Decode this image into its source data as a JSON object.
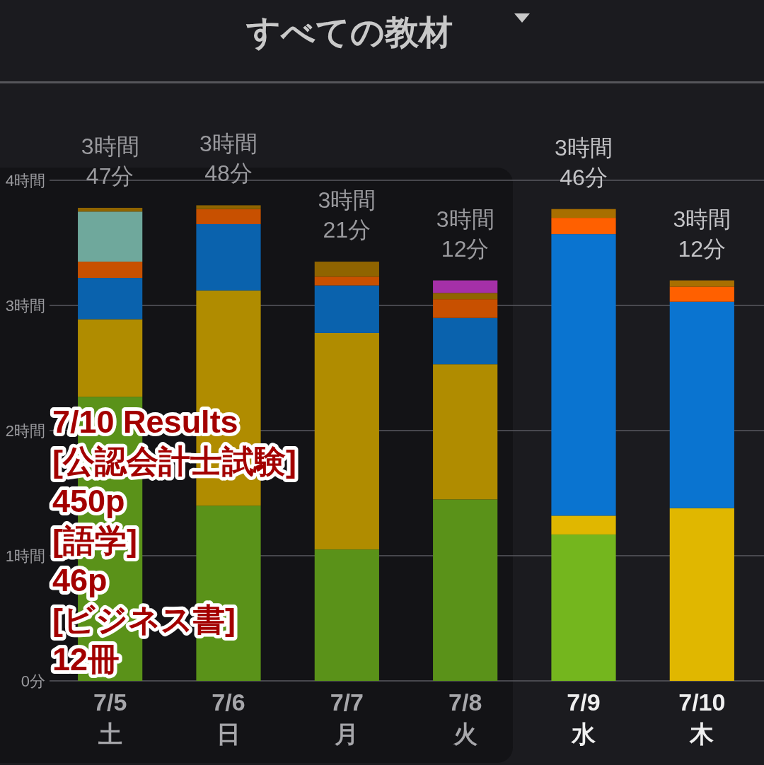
{
  "chart_data": {
    "type": "bar",
    "stacked": true,
    "title": "すべての教材",
    "categories": [
      "7/5\n土",
      "7/6\n日",
      "7/7\n月",
      "7/8\n火",
      "7/9\n水",
      "7/10\n木"
    ],
    "series": [
      {
        "colors": [
          "#5a9219",
          "#5a9219",
          "#5a9219",
          "#5a9219",
          "#74b61e",
          null
        ],
        "values": [
          2.27,
          1.4,
          1.05,
          1.45,
          1.17,
          null
        ]
      },
      {
        "colors": [
          "#b08c00",
          "#b08c00",
          "#b08c00",
          "#b08c00",
          "#e0b700",
          "#e0b700"
        ],
        "values": [
          0.62,
          1.72,
          1.73,
          1.08,
          0.15,
          1.38
        ]
      },
      {
        "colors": [
          "#0a62ad",
          "#0a62ad",
          "#0a62ad",
          "#0a62ad",
          "#0a74d0",
          "#0a74d0"
        ],
        "values": [
          0.33,
          0.53,
          0.38,
          0.37,
          2.25,
          1.65
        ]
      },
      {
        "colors": [
          "#c85000",
          "#c85000",
          "#c85000",
          "#c85000",
          "#ff6000",
          "#ff6000"
        ],
        "values": [
          0.13,
          0.12,
          0.07,
          0.15,
          0.13,
          0.12
        ]
      },
      {
        "colors": [
          "#6fa89c",
          null,
          null,
          null,
          null,
          null
        ],
        "values": [
          0.4,
          null,
          null,
          null,
          null,
          null
        ]
      },
      {
        "colors": [
          "#8f6400",
          "#8f6400",
          "#8f6400",
          "#8f6400",
          "#a86f00",
          "#a86f00"
        ],
        "values": [
          0.03,
          0.03,
          0.12,
          0.05,
          0.07,
          0.05
        ]
      },
      {
        "colors": [
          null,
          null,
          null,
          "#a530a8",
          null,
          null
        ],
        "values": [
          null,
          null,
          null,
          0.1,
          null,
          null
        ]
      }
    ],
    "totals": [
      "3時間\n47分",
      "3時間\n48分",
      "3時間\n21分",
      "3時間\n12分",
      "3時間\n46分",
      "3時間\n12分"
    ],
    "ylim": [
      0,
      4
    ],
    "yticks": [
      {
        "value": 0,
        "label": "0分"
      },
      {
        "value": 1,
        "label": "1時間"
      },
      {
        "value": 2,
        "label": "2時間"
      },
      {
        "value": 3,
        "label": "3時間"
      },
      {
        "value": 4,
        "label": "4時間"
      }
    ],
    "grid": "y",
    "annotations": [
      "7/10 Results",
      "[公認会計士試験]",
      "450p",
      "[語学]",
      "46p",
      "[ビジネス書]",
      "12冊"
    ]
  }
}
